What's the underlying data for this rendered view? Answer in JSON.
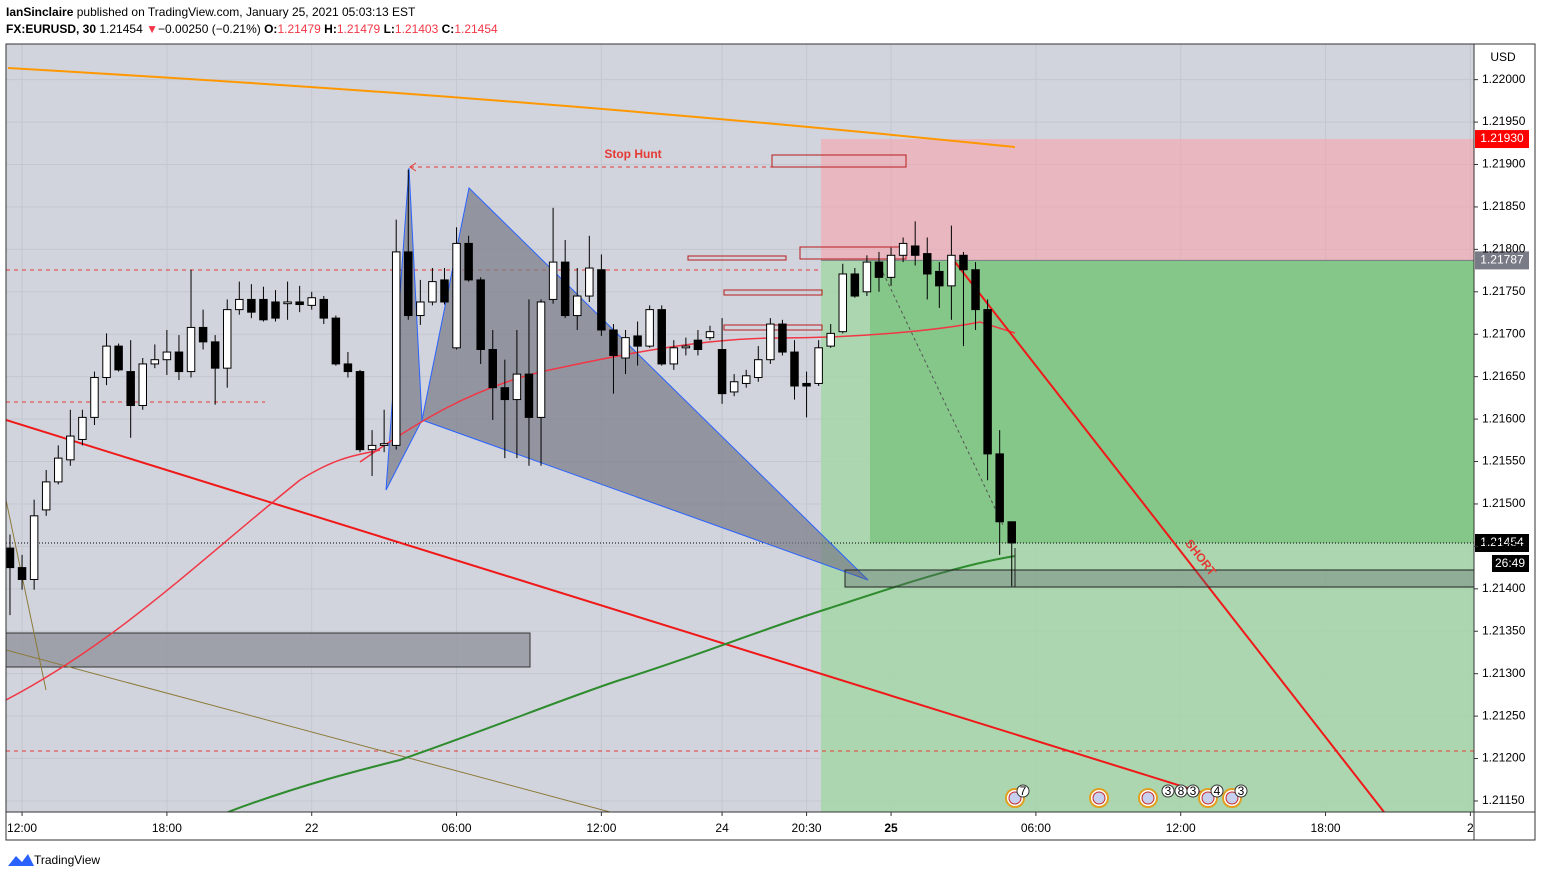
{
  "header": {
    "publisher": "IanSinclaire",
    "published_text": "published on TradingView.com, January 25, 2021 05:03:13 EST",
    "symbol": "FX:EURUSD, 30",
    "last": 1.21454,
    "change_arrow": "▼",
    "change": "−0.00250 (−0.21%)",
    "ohlc": [
      {
        "label": "O:",
        "value": 1.21479
      },
      {
        "label": "H:",
        "value": 1.21479
      },
      {
        "label": "L:",
        "value": 1.21403
      },
      {
        "label": "C:",
        "value": 1.21454
      }
    ]
  },
  "chart_data": {
    "type": "candlestick",
    "open": [
      1.21448,
      1.21425,
      1.21411,
      1.21493,
      1.21526,
      1.21552,
      1.21576,
      1.21602,
      1.21649,
      1.21686,
      1.21656,
      1.21616,
      1.21665,
      1.2167,
      1.21679,
      1.21656,
      1.21708,
      1.21691,
      1.2166,
      1.21729,
      1.21741,
      1.21741,
      1.21738,
      1.21736,
      1.21738,
      1.21734,
      1.21741,
      1.21719,
      1.21665,
      1.21656,
      1.21564,
      1.21569,
      1.21569,
      1.21797,
      1.21722,
      1.21738,
      1.21764,
      1.21684,
      1.21807,
      1.21764,
      1.21682,
      1.21637,
      1.21623,
      1.21653,
      1.21602,
      1.21741,
      1.21785,
      1.21722,
      1.21745,
      1.21776,
      1.21705,
      1.21672,
      1.21698,
      1.21686,
      1.21729,
      1.21665,
      1.21684,
      1.21693,
      1.21696,
      1.21682,
      1.21632,
      1.21642,
      1.21649,
      1.2167,
      1.21712,
      1.21679,
      1.21642,
      1.21642,
      1.21686,
      1.21703,
      1.21771,
      1.2175,
      1.21785,
      1.21767,
      1.21793,
      1.21804,
      1.21795,
      1.21774,
      1.21757,
      1.21793,
      1.21776,
      1.21729,
      1.21559,
      1.21479
    ],
    "high": [
      1.21464,
      1.2144,
      1.21505,
      1.2154,
      1.21569,
      1.21611,
      1.21611,
      1.21656,
      1.21701,
      1.21689,
      1.21693,
      1.21672,
      1.21688,
      1.21705,
      1.21699,
      1.21776,
      1.21729,
      1.21699,
      1.21741,
      1.21762,
      1.21759,
      1.21756,
      1.21752,
      1.21762,
      1.21757,
      1.2175,
      1.21745,
      1.21722,
      1.21679,
      1.21658,
      1.21587,
      1.21611,
      1.21835,
      1.21894,
      1.21764,
      1.21778,
      1.21778,
      1.21826,
      1.21816,
      1.21767,
      1.21705,
      1.2167,
      1.21705,
      1.21741,
      1.21741,
      1.21849,
      1.21811,
      1.21778,
      1.21816,
      1.21794,
      1.21712,
      1.21705,
      1.21715,
      1.21734,
      1.21734,
      1.21693,
      1.21696,
      1.21705,
      1.2171,
      1.21719,
      1.21653,
      1.21658,
      1.21686,
      1.21719,
      1.21717,
      1.21693,
      1.21656,
      1.21693,
      1.21712,
      1.21783,
      1.21778,
      1.21793,
      1.21797,
      1.21802,
      1.21814,
      1.21833,
      1.21814,
      1.21785,
      1.21828,
      1.21797,
      1.21785,
      1.21741,
      1.21587,
      1.21479
    ],
    "low": [
      1.21369,
      1.21399,
      1.21399,
      1.21486,
      1.21523,
      1.21545,
      1.21569,
      1.21593,
      1.2164,
      1.21656,
      1.21578,
      1.21611,
      1.2166,
      1.21652,
      1.21646,
      1.21649,
      1.21682,
      1.21617,
      1.21637,
      1.21723,
      1.21719,
      1.21715,
      1.21715,
      1.21717,
      1.21726,
      1.21729,
      1.21712,
      1.21663,
      1.21649,
      1.21561,
      1.21533,
      1.21561,
      1.21564,
      1.21717,
      1.21711,
      1.21734,
      1.21735,
      1.21682,
      1.21762,
      1.21665,
      1.21599,
      1.21554,
      1.21554,
      1.21545,
      1.21545,
      1.21736,
      1.21719,
      1.21705,
      1.21738,
      1.21698,
      1.2163,
      1.21653,
      1.21663,
      1.21684,
      1.21663,
      1.21658,
      1.21675,
      1.21675,
      1.21693,
      1.21618,
      1.21627,
      1.21637,
      1.21644,
      1.21665,
      1.21675,
      1.21623,
      1.21602,
      1.21639,
      1.21684,
      1.21701,
      1.21743,
      1.21745,
      1.2175,
      1.21757,
      1.21785,
      1.21781,
      1.21741,
      1.21731,
      1.21717,
      1.21686,
      1.21705,
      1.21528,
      1.2144,
      1.21403
    ],
    "close": [
      1.21425,
      1.21411,
      1.21486,
      1.21526,
      1.21554,
      1.2158,
      1.21602,
      1.21649,
      1.21686,
      1.21658,
      1.21616,
      1.21665,
      1.2167,
      1.21679,
      1.21656,
      1.21708,
      1.21691,
      1.2166,
      1.21729,
      1.21741,
      1.21726,
      1.21717,
      1.21719,
      1.21738,
      1.21735,
      1.21743,
      1.21719,
      1.21665,
      1.21656,
      1.21564,
      1.21569,
      1.21571,
      1.21797,
      1.21722,
      1.21738,
      1.21762,
      1.21738,
      1.21807,
      1.21764,
      1.21682,
      1.21637,
      1.21623,
      1.21653,
      1.21602,
      1.21738,
      1.21785,
      1.21722,
      1.21745,
      1.21778,
      1.21705,
      1.21675,
      1.21696,
      1.21686,
      1.21729,
      1.21665,
      1.21684,
      1.21686,
      1.21682,
      1.21703,
      1.2163,
      1.21644,
      1.21651,
      1.2167,
      1.21712,
      1.21679,
      1.21639,
      1.21639,
      1.21684,
      1.21701,
      1.21771,
      1.21745,
      1.21785,
      1.21767,
      1.21793,
      1.21807,
      1.21793,
      1.21771,
      1.21757,
      1.21793,
      1.21776,
      1.21729,
      1.21559,
      1.21479,
      1.21454
    ],
    "up_color": "#ffffff",
    "down_color": "#000000",
    "xlim": [
      -0.33,
      121.3
    ],
    "xticks": [
      {
        "value": 1,
        "label": "12:00"
      },
      {
        "value": 13,
        "label": "18:00"
      },
      {
        "value": 25,
        "label": "22"
      },
      {
        "value": 37,
        "label": "06:00"
      },
      {
        "value": 49,
        "label": "12:00"
      },
      {
        "value": 59,
        "label": "24"
      },
      {
        "value": 66,
        "label": "20:30"
      },
      {
        "value": 73,
        "label": "25"
      },
      {
        "value": 85,
        "label": "06:00"
      },
      {
        "value": 97,
        "label": "12:00"
      },
      {
        "value": 109,
        "label": "18:00"
      },
      {
        "value": 121,
        "label": "2"
      }
    ],
    "ylim": [
      1.21137,
      1.22042
    ],
    "yticks": [
      {
        "value": 1.2115,
        "label": "1.21150"
      },
      {
        "value": 1.212,
        "label": "1.21200"
      },
      {
        "value": 1.2125,
        "label": "1.21250"
      },
      {
        "value": 1.213,
        "label": "1.21300"
      },
      {
        "value": 1.2135,
        "label": "1.21350"
      },
      {
        "value": 1.214,
        "label": "1.21400"
      },
      {
        "value": 1.2145,
        "label": "1.21450"
      },
      {
        "value": 1.215,
        "label": "1.21500"
      },
      {
        "value": 1.2155,
        "label": "1.21550"
      },
      {
        "value": 1.216,
        "label": "1.21600"
      },
      {
        "value": 1.2165,
        "label": "1.21650"
      },
      {
        "value": 1.217,
        "label": "1.21700"
      },
      {
        "value": 1.2175,
        "label": "1.21750"
      },
      {
        "value": 1.218,
        "label": "1.21800"
      },
      {
        "value": 1.2185,
        "label": "1.21850"
      },
      {
        "value": 1.219,
        "label": "1.21900"
      },
      {
        "value": 1.2195,
        "label": "1.21950"
      },
      {
        "value": 1.22,
        "label": "1.22000"
      }
    ],
    "currency": "USD",
    "annotations": [
      "Stop Hunt",
      "SHORT"
    ],
    "price_labels": [
      {
        "value": 1.2193,
        "label": "1.21930",
        "color": "#ff0000"
      },
      {
        "value": 1.21787,
        "label": "1.21787",
        "color": "#787b86"
      },
      {
        "value": 1.21454,
        "label": "1.21454",
        "color": "#000000"
      }
    ],
    "countdown": "26:49",
    "event_counts": [
      7,
      3,
      8,
      3,
      4,
      3
    ]
  },
  "footer": {
    "brand": "TradingView"
  }
}
